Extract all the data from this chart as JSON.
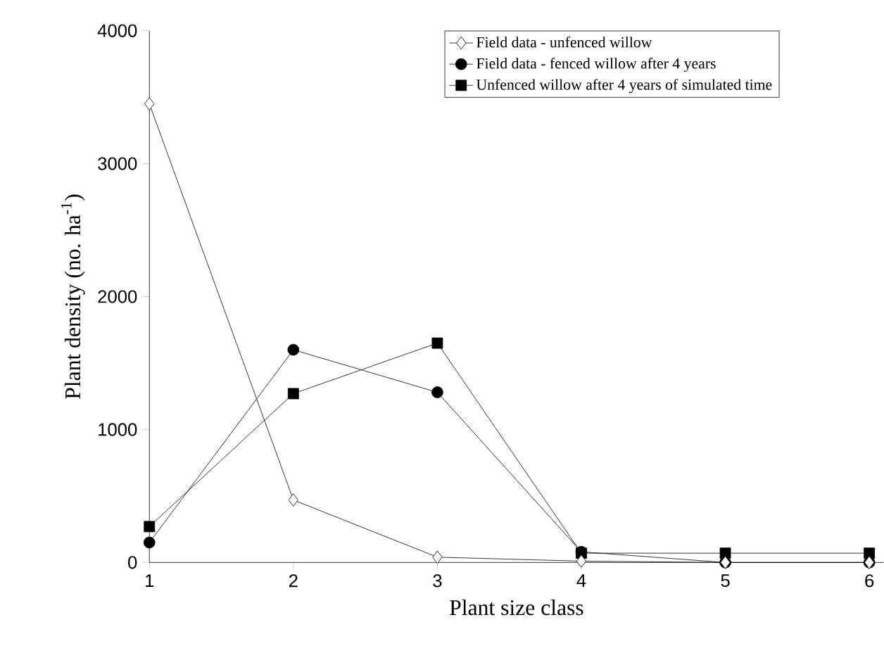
{
  "chart_data": {
    "type": "line",
    "xlabel": "Plant size class",
    "ylabel": "Plant density  (no. ha$^{-1}$)",
    "x": [
      1,
      2,
      3,
      4,
      5,
      6
    ],
    "series": [
      {
        "name": "Field data -  unfenced willow",
        "color": "#000000",
        "marker": "diamond",
        "values": [
          3450,
          470,
          40,
          10,
          0,
          0
        ]
      },
      {
        "name": "Field data  -  fenced willow after 4 years",
        "color": "#000000",
        "marker": "circle",
        "values": [
          150,
          1600,
          1280,
          80,
          0,
          0
        ]
      },
      {
        "name": "Unfenced willow after 4 years of simulated time",
        "color": "#000000",
        "marker": "square",
        "values": [
          270,
          1270,
          1650,
          70,
          70,
          70
        ]
      }
    ],
    "xlim": [
      1,
      6.1
    ],
    "ylim": [
      0,
      4000
    ],
    "xticks": [
      1,
      2,
      3,
      4,
      5,
      6
    ],
    "yticks": [
      0,
      1000,
      2000,
      3000,
      4000
    ],
    "grid": false,
    "legend": "top right",
    "line_style": "solid"
  }
}
